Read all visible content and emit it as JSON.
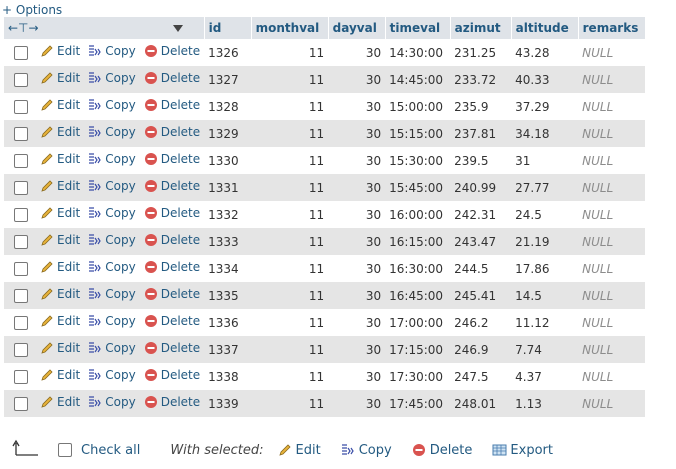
{
  "options_label": "+ Options",
  "columns": [
    "id",
    "monthval",
    "dayval",
    "timeval",
    "azimut",
    "altitude",
    "remarks"
  ],
  "actions": {
    "edit": "Edit",
    "copy": "Copy",
    "delete": "Delete"
  },
  "rows": [
    {
      "id": "1326",
      "monthval": "11",
      "dayval": "30",
      "timeval": "14:30:00",
      "azimut": "231.25",
      "altitude": "43.28",
      "remarks": "NULL"
    },
    {
      "id": "1327",
      "monthval": "11",
      "dayval": "30",
      "timeval": "14:45:00",
      "azimut": "233.72",
      "altitude": "40.33",
      "remarks": "NULL"
    },
    {
      "id": "1328",
      "monthval": "11",
      "dayval": "30",
      "timeval": "15:00:00",
      "azimut": "235.9",
      "altitude": "37.29",
      "remarks": "NULL"
    },
    {
      "id": "1329",
      "monthval": "11",
      "dayval": "30",
      "timeval": "15:15:00",
      "azimut": "237.81",
      "altitude": "34.18",
      "remarks": "NULL"
    },
    {
      "id": "1330",
      "monthval": "11",
      "dayval": "30",
      "timeval": "15:30:00",
      "azimut": "239.5",
      "altitude": "31",
      "remarks": "NULL"
    },
    {
      "id": "1331",
      "monthval": "11",
      "dayval": "30",
      "timeval": "15:45:00",
      "azimut": "240.99",
      "altitude": "27.77",
      "remarks": "NULL"
    },
    {
      "id": "1332",
      "monthval": "11",
      "dayval": "30",
      "timeval": "16:00:00",
      "azimut": "242.31",
      "altitude": "24.5",
      "remarks": "NULL"
    },
    {
      "id": "1333",
      "monthval": "11",
      "dayval": "30",
      "timeval": "16:15:00",
      "azimut": "243.47",
      "altitude": "21.19",
      "remarks": "NULL"
    },
    {
      "id": "1334",
      "monthval": "11",
      "dayval": "30",
      "timeval": "16:30:00",
      "azimut": "244.5",
      "altitude": "17.86",
      "remarks": "NULL"
    },
    {
      "id": "1335",
      "monthval": "11",
      "dayval": "30",
      "timeval": "16:45:00",
      "azimut": "245.41",
      "altitude": "14.5",
      "remarks": "NULL"
    },
    {
      "id": "1336",
      "monthval": "11",
      "dayval": "30",
      "timeval": "17:00:00",
      "azimut": "246.2",
      "altitude": "11.12",
      "remarks": "NULL"
    },
    {
      "id": "1337",
      "monthval": "11",
      "dayval": "30",
      "timeval": "17:15:00",
      "azimut": "246.9",
      "altitude": "7.74",
      "remarks": "NULL"
    },
    {
      "id": "1338",
      "monthval": "11",
      "dayval": "30",
      "timeval": "17:30:00",
      "azimut": "247.5",
      "altitude": "4.37",
      "remarks": "NULL"
    },
    {
      "id": "1339",
      "monthval": "11",
      "dayval": "30",
      "timeval": "17:45:00",
      "azimut": "248.01",
      "altitude": "1.13",
      "remarks": "NULL"
    }
  ],
  "footer": {
    "check_all": "Check all",
    "with_selected": "With selected:",
    "edit": "Edit",
    "copy": "Copy",
    "delete": "Delete",
    "export": "Export"
  }
}
